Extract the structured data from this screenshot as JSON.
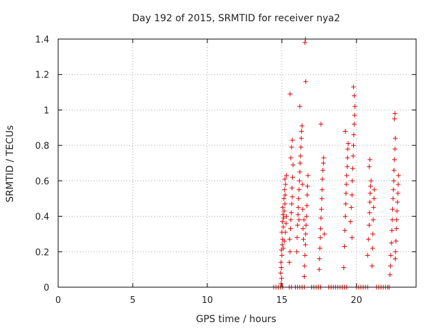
{
  "chart_data": {
    "type": "scatter",
    "title": "Day 192 of 2015, SRMTID for receiver nya2",
    "xlabel": "GPS time / hours",
    "ylabel": "SRMTID / TECUs",
    "xlim": [
      0,
      24
    ],
    "ylim": [
      0,
      1.4
    ],
    "xticks": [
      {
        "value": 0,
        "label": "0"
      },
      {
        "value": 5,
        "label": "5"
      },
      {
        "value": 10,
        "label": "10"
      },
      {
        "value": 15,
        "label": "15"
      },
      {
        "value": 20,
        "label": "20"
      }
    ],
    "yticks": [
      {
        "value": 0,
        "label": "0"
      },
      {
        "value": 0.2,
        "label": "0.2"
      },
      {
        "value": 0.4,
        "label": "0.4"
      },
      {
        "value": 0.6,
        "label": "0.6"
      },
      {
        "value": 0.8,
        "label": "0.8"
      },
      {
        "value": 1.0,
        "label": "1"
      },
      {
        "value": 1.2,
        "label": "1.2"
      },
      {
        "value": 1.4,
        "label": "1.4"
      }
    ],
    "grid": true,
    "marker": "+",
    "color": "#e00000",
    "series": [
      {
        "points": [
          [
            14.45,
            0.0
          ],
          [
            14.6,
            0.0
          ],
          [
            14.75,
            0.0
          ],
          [
            14.9,
            0.0
          ],
          [
            15.05,
            0.0
          ],
          [
            15.5,
            0.0
          ],
          [
            15.65,
            0.0
          ],
          [
            15.9,
            0.0
          ],
          [
            16.05,
            0.0
          ],
          [
            16.2,
            0.0
          ],
          [
            16.35,
            0.0
          ],
          [
            16.5,
            0.0
          ],
          [
            17.0,
            0.0
          ],
          [
            17.15,
            0.0
          ],
          [
            17.3,
            0.0
          ],
          [
            17.45,
            0.0
          ],
          [
            17.6,
            0.0
          ],
          [
            18.15,
            0.0
          ],
          [
            18.3,
            0.0
          ],
          [
            18.45,
            0.0
          ],
          [
            18.6,
            0.0
          ],
          [
            18.75,
            0.0
          ],
          [
            18.9,
            0.0
          ],
          [
            19.05,
            0.0
          ],
          [
            19.2,
            0.0
          ],
          [
            19.35,
            0.0
          ],
          [
            20.0,
            0.0
          ],
          [
            20.15,
            0.0
          ],
          [
            20.3,
            0.0
          ],
          [
            20.45,
            0.0
          ],
          [
            20.6,
            0.0
          ],
          [
            20.75,
            0.0
          ],
          [
            21.35,
            0.0
          ],
          [
            21.5,
            0.0
          ],
          [
            21.65,
            0.0
          ],
          [
            21.8,
            0.0
          ],
          [
            21.95,
            0.0
          ],
          [
            22.1,
            0.0
          ],
          [
            22.2,
            0.0
          ],
          [
            14.95,
            0.02
          ],
          [
            14.98,
            0.05
          ],
          [
            14.92,
            0.08
          ],
          [
            14.96,
            0.11
          ],
          [
            14.94,
            0.14
          ],
          [
            15.0,
            0.18
          ],
          [
            14.97,
            0.21
          ],
          [
            15.02,
            0.24
          ],
          [
            15.05,
            0.27
          ],
          [
            15.0,
            0.31
          ],
          [
            15.1,
            0.34
          ],
          [
            15.04,
            0.37
          ],
          [
            15.12,
            0.39
          ],
          [
            15.08,
            0.41
          ],
          [
            15.15,
            0.43
          ],
          [
            15.06,
            0.45
          ],
          [
            15.2,
            0.47
          ],
          [
            15.14,
            0.5
          ],
          [
            15.22,
            0.52
          ],
          [
            15.18,
            0.55
          ],
          [
            15.25,
            0.58
          ],
          [
            15.2,
            0.61
          ],
          [
            15.3,
            0.63
          ],
          [
            15.16,
            0.26
          ],
          [
            15.24,
            0.31
          ],
          [
            15.28,
            0.36
          ],
          [
            15.1,
            0.22
          ],
          [
            15.3,
            0.4
          ],
          [
            15.5,
            0.14
          ],
          [
            15.55,
            0.2
          ],
          [
            15.52,
            0.27
          ],
          [
            15.58,
            0.33
          ],
          [
            15.6,
            0.38
          ],
          [
            15.63,
            0.42
          ],
          [
            15.66,
            0.47
          ],
          [
            15.7,
            0.51
          ],
          [
            15.68,
            0.56
          ],
          [
            15.72,
            0.62
          ],
          [
            15.75,
            0.69
          ],
          [
            15.6,
            0.73
          ],
          [
            15.65,
            0.79
          ],
          [
            15.55,
            1.09
          ],
          [
            15.7,
            0.83
          ],
          [
            16.0,
            0.2
          ],
          [
            16.02,
            0.28
          ],
          [
            16.05,
            0.35
          ],
          [
            16.08,
            0.41
          ],
          [
            16.1,
            0.45
          ],
          [
            16.12,
            0.5
          ],
          [
            16.15,
            0.55
          ],
          [
            16.18,
            0.6
          ],
          [
            16.2,
            0.65
          ],
          [
            16.22,
            0.7
          ],
          [
            16.25,
            0.74
          ],
          [
            16.28,
            0.79
          ],
          [
            16.3,
            0.84
          ],
          [
            16.32,
            0.88
          ],
          [
            16.35,
            0.91
          ],
          [
            16.2,
            1.02
          ],
          [
            16.15,
            0.38
          ],
          [
            16.4,
            0.44
          ],
          [
            16.42,
            0.33
          ],
          [
            16.45,
            0.27
          ],
          [
            16.38,
            0.58
          ],
          [
            16.5,
            0.06
          ],
          [
            16.52,
            0.12
          ],
          [
            16.55,
            0.18
          ],
          [
            16.58,
            0.24
          ],
          [
            16.6,
            0.3
          ],
          [
            16.62,
            0.35
          ],
          [
            16.65,
            0.4
          ],
          [
            16.68,
            0.46
          ],
          [
            16.7,
            0.52
          ],
          [
            16.72,
            0.57
          ],
          [
            16.75,
            0.63
          ],
          [
            16.6,
            1.16
          ],
          [
            16.55,
            1.38
          ],
          [
            16.58,
            1.4
          ],
          [
            16.48,
            0.38
          ],
          [
            17.5,
            0.1
          ],
          [
            17.52,
            0.16
          ],
          [
            17.55,
            0.22
          ],
          [
            17.58,
            0.28
          ],
          [
            17.6,
            0.33
          ],
          [
            17.62,
            0.39
          ],
          [
            17.65,
            0.44
          ],
          [
            17.68,
            0.5
          ],
          [
            17.7,
            0.55
          ],
          [
            17.72,
            0.61
          ],
          [
            17.75,
            0.66
          ],
          [
            17.78,
            0.7
          ],
          [
            17.8,
            0.73
          ],
          [
            17.62,
            0.92
          ],
          [
            17.85,
            0.3
          ],
          [
            19.15,
            0.11
          ],
          [
            19.2,
            0.23
          ],
          [
            19.22,
            0.32
          ],
          [
            19.25,
            0.4
          ],
          [
            19.28,
            0.47
          ],
          [
            19.3,
            0.53
          ],
          [
            19.32,
            0.58
          ],
          [
            19.35,
            0.63
          ],
          [
            19.38,
            0.68
          ],
          [
            19.4,
            0.73
          ],
          [
            19.42,
            0.78
          ],
          [
            19.45,
            0.81
          ],
          [
            19.25,
            0.88
          ],
          [
            19.6,
            0.37
          ],
          [
            19.65,
            0.45
          ],
          [
            19.7,
            0.52
          ],
          [
            19.72,
            0.6
          ],
          [
            19.75,
            0.67
          ],
          [
            19.78,
            0.74
          ],
          [
            19.8,
            0.8
          ],
          [
            19.82,
            0.86
          ],
          [
            19.85,
            0.92
          ],
          [
            19.88,
            0.97
          ],
          [
            19.9,
            1.02
          ],
          [
            19.85,
            1.08
          ],
          [
            19.8,
            1.13
          ],
          [
            19.7,
            0.28
          ],
          [
            20.75,
            0.18
          ],
          [
            20.8,
            0.27
          ],
          [
            20.85,
            0.35
          ],
          [
            20.88,
            0.42
          ],
          [
            20.9,
            0.48
          ],
          [
            20.92,
            0.53
          ],
          [
            20.95,
            0.57
          ],
          [
            20.98,
            0.6
          ],
          [
            20.85,
            0.68
          ],
          [
            20.9,
            0.72
          ],
          [
            21.05,
            0.12
          ],
          [
            21.08,
            0.22
          ],
          [
            21.1,
            0.3
          ],
          [
            21.12,
            0.38
          ],
          [
            21.15,
            0.45
          ],
          [
            21.18,
            0.5
          ],
          [
            21.2,
            0.55
          ],
          [
            22.25,
            0.07
          ],
          [
            22.28,
            0.12
          ],
          [
            22.3,
            0.18
          ],
          [
            22.35,
            0.25
          ],
          [
            22.38,
            0.32
          ],
          [
            22.4,
            0.38
          ],
          [
            22.42,
            0.44
          ],
          [
            22.45,
            0.5
          ],
          [
            22.48,
            0.55
          ],
          [
            22.5,
            0.6
          ],
          [
            22.52,
            0.66
          ],
          [
            22.55,
            0.72
          ],
          [
            22.58,
            0.78
          ],
          [
            22.6,
            0.84
          ],
          [
            22.55,
            0.95
          ],
          [
            22.58,
            0.98
          ],
          [
            22.6,
            0.16
          ],
          [
            22.62,
            0.2
          ],
          [
            22.65,
            0.26
          ],
          [
            22.68,
            0.33
          ],
          [
            22.7,
            0.38
          ],
          [
            22.72,
            0.43
          ],
          [
            22.75,
            0.48
          ],
          [
            22.78,
            0.53
          ],
          [
            22.8,
            0.58
          ],
          [
            22.82,
            0.63
          ]
        ]
      }
    ]
  }
}
